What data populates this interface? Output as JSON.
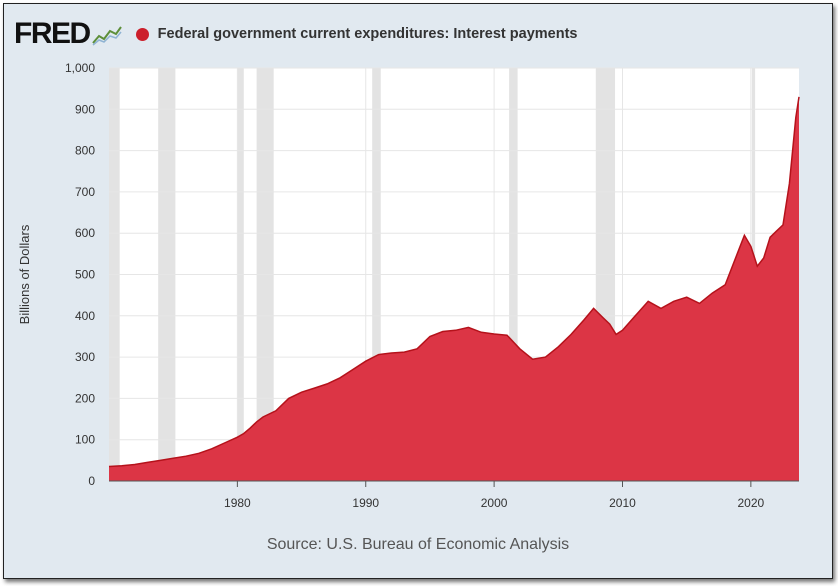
{
  "header": {
    "logo_text": "FRED",
    "series_title": "Federal government current expenditures: Interest payments",
    "series_color": "#cc1f2b"
  },
  "source_text": "Source: U.S. Bureau of Economic Analysis",
  "chart_data": {
    "type": "area",
    "title": "Federal government current expenditures: Interest payments",
    "xlabel": "",
    "ylabel": "Billions of Dollars",
    "xlim": [
      1970.0,
      2023.75
    ],
    "ylim": [
      0,
      1000
    ],
    "y_ticks": [
      0,
      100,
      200,
      300,
      400,
      500,
      600,
      700,
      800,
      900,
      1000
    ],
    "y_tick_labels": [
      "0",
      "100",
      "200",
      "300",
      "400",
      "500",
      "600",
      "700",
      "800",
      "900",
      "1,000"
    ],
    "x_ticks": [
      1980,
      1990,
      2000,
      2010,
      2020
    ],
    "x_tick_labels": [
      "1980",
      "1990",
      "2000",
      "2010",
      "2020"
    ],
    "grid": true,
    "fill_color": "#dc3545",
    "line_color": "#b5121b",
    "recession_color": "#e3e3e3",
    "recessions": [
      [
        1970.0,
        1970.83
      ],
      [
        1973.83,
        1975.17
      ],
      [
        1980.0,
        1980.5
      ],
      [
        1981.5,
        1982.83
      ],
      [
        1990.5,
        1991.17
      ],
      [
        2001.17,
        2001.83
      ],
      [
        2007.92,
        2009.42
      ],
      [
        2020.08,
        2020.33
      ]
    ],
    "series": [
      {
        "x": [
          1970.0,
          1971.0,
          1972.0,
          1973.0,
          1974.0,
          1975.0,
          1976.0,
          1977.0,
          1978.0,
          1979.0,
          1980.0,
          1980.5,
          1981.0,
          1981.5,
          1982.0,
          1983.0,
          1984.0,
          1985.0,
          1986.0,
          1987.0,
          1988.0,
          1989.0,
          1990.0,
          1991.0,
          1992.0,
          1993.0,
          1994.0,
          1995.0,
          1996.0,
          1997.0,
          1998.0,
          1999.0,
          2000.0,
          2001.0,
          2002.0,
          2003.0,
          2004.0,
          2005.0,
          2006.0,
          2007.0,
          2007.75,
          2008.5,
          2009.0,
          2009.5,
          2010.0,
          2011.0,
          2012.0,
          2013.0,
          2014.0,
          2015.0,
          2016.0,
          2017.0,
          2018.0,
          2019.0,
          2019.5,
          2020.0,
          2020.5,
          2021.0,
          2021.5,
          2022.0,
          2022.5,
          2023.0,
          2023.5,
          2023.75
        ],
        "values": [
          35,
          37,
          40,
          45,
          50,
          55,
          60,
          67,
          78,
          92,
          106,
          115,
          128,
          143,
          155,
          170,
          200,
          215,
          225,
          235,
          250,
          270,
          290,
          306,
          310,
          312,
          320,
          350,
          362,
          365,
          372,
          360,
          356,
          353,
          320,
          295,
          300,
          325,
          355,
          390,
          418,
          395,
          380,
          355,
          365,
          400,
          435,
          418,
          435,
          445,
          430,
          455,
          475,
          555,
          595,
          568,
          520,
          540,
          590,
          605,
          620,
          720,
          880,
          930
        ]
      }
    ]
  }
}
